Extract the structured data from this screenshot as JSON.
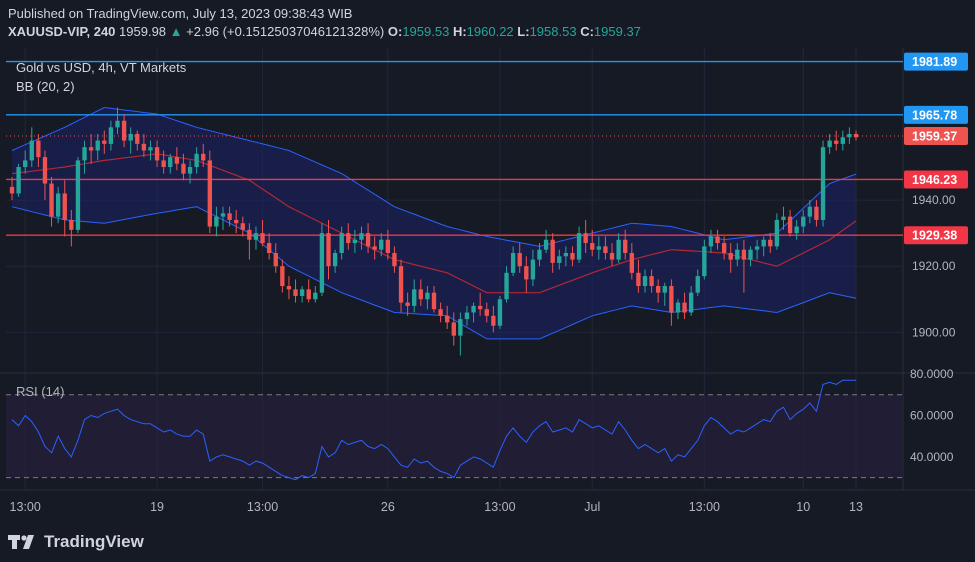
{
  "header": {
    "published": "Published on TradingView.com, July 13, 2023 09:38:43 WIB",
    "symbol": "XAUUSD-VIP, 240",
    "last": "1959.98",
    "arrow": "▲",
    "change": "+2.96 (+0.15125037046121328%)",
    "o_label": "O:",
    "o_value": "1959.53",
    "h_label": "H:",
    "h_value": "1960.22",
    "l_label": "L:",
    "l_value": "1958.53",
    "c_label": "C:",
    "c_value": "1959.37"
  },
  "legend": {
    "title": "Gold vs USD, 4h, VT Markets",
    "bb": "BB (20, 2)"
  },
  "rsi": {
    "label": "RSI (14)"
  },
  "branding": {
    "name": "TradingView"
  },
  "colors": {
    "background": "#161a25",
    "bull": "#26a69a",
    "bear": "#ef5350",
    "bb_fill": "#1c2266",
    "bb_band": "#2962ff",
    "bb_mid": "#b22833",
    "hline_red": "#f23645",
    "hline_blue": "#2196f3",
    "rsi_line": "#2962ff",
    "rsi_band": "#2a1f3f"
  },
  "chart_data": [
    {
      "type": "candlestick",
      "title": "Gold vs USD, 4h, VT Markets",
      "y_range": [
        1888,
        1986
      ],
      "y_ticks": [
        1900,
        1920,
        1940
      ],
      "x_ticks": [
        "13:00",
        "19",
        "13:00",
        "26",
        "13:00",
        "Jul",
        "13:00",
        "10",
        "13"
      ],
      "price_levels": [
        {
          "value": 1981.89,
          "label": "1981.89",
          "color": "#2196f3"
        },
        {
          "value": 1965.78,
          "label": "1965.78",
          "color": "#2196f3"
        },
        {
          "value": 1959.37,
          "label": "1959.37",
          "color": "#ef5350",
          "style": "dotted"
        },
        {
          "value": 1946.23,
          "label": "1946.23",
          "color": "#f23645"
        },
        {
          "value": 1929.38,
          "label": "1929.38",
          "color": "#f23645"
        }
      ],
      "ohlc": [
        [
          1944,
          1947,
          1940,
          1942
        ],
        [
          1942,
          1951,
          1941,
          1950
        ],
        [
          1950,
          1955,
          1948,
          1952
        ],
        [
          1952,
          1962,
          1950,
          1958
        ],
        [
          1958,
          1960,
          1950,
          1953
        ],
        [
          1953,
          1955,
          1940,
          1945
        ],
        [
          1945,
          1947,
          1932,
          1935
        ],
        [
          1935,
          1944,
          1933,
          1942
        ],
        [
          1942,
          1946,
          1929,
          1934
        ],
        [
          1934,
          1937,
          1926,
          1931
        ],
        [
          1931,
          1953,
          1930,
          1952
        ],
        [
          1952,
          1958,
          1948,
          1956
        ],
        [
          1956,
          1960,
          1951,
          1955
        ],
        [
          1955,
          1960,
          1952,
          1958
        ],
        [
          1958,
          1961,
          1954,
          1957
        ],
        [
          1957,
          1964,
          1955,
          1962
        ],
        [
          1962,
          1968,
          1960,
          1964
        ],
        [
          1964,
          1966,
          1956,
          1958
        ],
        [
          1958,
          1962,
          1954,
          1960
        ],
        [
          1960,
          1961,
          1955,
          1957
        ],
        [
          1957,
          1960,
          1953,
          1955
        ],
        [
          1955,
          1958,
          1952,
          1956
        ],
        [
          1956,
          1958,
          1950,
          1952
        ],
        [
          1952,
          1955,
          1948,
          1950
        ],
        [
          1950,
          1954,
          1948,
          1953
        ],
        [
          1953,
          1956,
          1949,
          1951
        ],
        [
          1951,
          1954,
          1946,
          1948
        ],
        [
          1948,
          1952,
          1945,
          1950
        ],
        [
          1950,
          1956,
          1948,
          1954
        ],
        [
          1954,
          1957,
          1950,
          1952
        ],
        [
          1952,
          1955,
          1930,
          1932
        ],
        [
          1932,
          1938,
          1929,
          1935
        ],
        [
          1935,
          1938,
          1931,
          1936
        ],
        [
          1936,
          1938,
          1932,
          1934
        ],
        [
          1934,
          1937,
          1930,
          1933
        ],
        [
          1933,
          1935,
          1929,
          1931
        ],
        [
          1931,
          1933,
          1922,
          1928
        ],
        [
          1928,
          1932,
          1925,
          1930
        ],
        [
          1930,
          1934,
          1926,
          1927
        ],
        [
          1927,
          1930,
          1922,
          1924
        ],
        [
          1924,
          1927,
          1918,
          1920
        ],
        [
          1920,
          1922,
          1912,
          1914
        ],
        [
          1914,
          1917,
          1910,
          1913
        ],
        [
          1913,
          1916,
          1909,
          1911
        ],
        [
          1911,
          1914,
          1909,
          1913
        ],
        [
          1913,
          1916,
          1909,
          1910
        ],
        [
          1910,
          1914,
          1909,
          1912
        ],
        [
          1912,
          1933,
          1911,
          1930
        ],
        [
          1930,
          1934,
          1916,
          1920
        ],
        [
          1920,
          1925,
          1918,
          1924
        ],
        [
          1924,
          1932,
          1922,
          1930
        ],
        [
          1930,
          1933,
          1925,
          1927
        ],
        [
          1927,
          1931,
          1924,
          1928
        ],
        [
          1928,
          1932,
          1925,
          1930
        ],
        [
          1930,
          1933,
          1924,
          1926
        ],
        [
          1926,
          1929,
          1922,
          1925
        ],
        [
          1925,
          1930,
          1923,
          1928
        ],
        [
          1928,
          1931,
          1922,
          1924
        ],
        [
          1924,
          1926,
          1918,
          1920
        ],
        [
          1920,
          1922,
          1906,
          1909
        ],
        [
          1909,
          1912,
          1905,
          1908
        ],
        [
          1908,
          1916,
          1906,
          1913
        ],
        [
          1913,
          1916,
          1908,
          1910
        ],
        [
          1910,
          1914,
          1907,
          1912
        ],
        [
          1912,
          1914,
          1906,
          1907
        ],
        [
          1907,
          1909,
          1903,
          1905
        ],
        [
          1905,
          1908,
          1901,
          1903
        ],
        [
          1903,
          1906,
          1896,
          1899
        ],
        [
          1899,
          1906,
          1893,
          1904
        ],
        [
          1904,
          1908,
          1902,
          1906
        ],
        [
          1906,
          1909,
          1903,
          1908
        ],
        [
          1908,
          1912,
          1905,
          1907
        ],
        [
          1907,
          1909,
          1903,
          1905
        ],
        [
          1905,
          1908,
          1900,
          1902
        ],
        [
          1902,
          1911,
          1901,
          1910
        ],
        [
          1910,
          1920,
          1909,
          1918
        ],
        [
          1918,
          1926,
          1917,
          1924
        ],
        [
          1924,
          1927,
          1918,
          1920
        ],
        [
          1920,
          1923,
          1912,
          1916
        ],
        [
          1916,
          1925,
          1914,
          1922
        ],
        [
          1922,
          1927,
          1920,
          1925
        ],
        [
          1925,
          1931,
          1924,
          1928
        ],
        [
          1928,
          1930,
          1918,
          1921
        ],
        [
          1921,
          1925,
          1919,
          1923
        ],
        [
          1923,
          1926,
          1920,
          1924
        ],
        [
          1924,
          1926,
          1920,
          1922
        ],
        [
          1922,
          1932,
          1921,
          1930
        ],
        [
          1930,
          1934,
          1924,
          1927
        ],
        [
          1927,
          1931,
          1923,
          1925
        ],
        [
          1925,
          1929,
          1922,
          1926
        ],
        [
          1926,
          1929,
          1922,
          1924
        ],
        [
          1924,
          1927,
          1920,
          1922
        ],
        [
          1922,
          1930,
          1921,
          1928
        ],
        [
          1928,
          1931,
          1922,
          1924
        ],
        [
          1924,
          1927,
          1916,
          1918
        ],
        [
          1918,
          1922,
          1912,
          1914
        ],
        [
          1914,
          1919,
          1912,
          1917
        ],
        [
          1917,
          1919,
          1912,
          1914
        ],
        [
          1914,
          1916,
          1909,
          1912
        ],
        [
          1912,
          1915,
          1908,
          1914
        ],
        [
          1914,
          1916,
          1902,
          1906
        ],
        [
          1906,
          1910,
          1904,
          1909
        ],
        [
          1909,
          1912,
          1904,
          1906
        ],
        [
          1906,
          1914,
          1905,
          1912
        ],
        [
          1912,
          1919,
          1911,
          1917
        ],
        [
          1917,
          1928,
          1916,
          1926
        ],
        [
          1926,
          1931,
          1924,
          1929
        ],
        [
          1929,
          1931,
          1925,
          1927
        ],
        [
          1927,
          1929,
          1922,
          1924
        ],
        [
          1924,
          1927,
          1918,
          1922
        ],
        [
          1922,
          1927,
          1920,
          1925
        ],
        [
          1925,
          1928,
          1912,
          1922
        ],
        [
          1922,
          1926,
          1920,
          1925
        ],
        [
          1925,
          1928,
          1922,
          1926
        ],
        [
          1926,
          1929,
          1923,
          1928
        ],
        [
          1928,
          1930,
          1924,
          1926
        ],
        [
          1926,
          1936,
          1925,
          1934
        ],
        [
          1934,
          1938,
          1931,
          1935
        ],
        [
          1935,
          1937,
          1929,
          1930
        ],
        [
          1930,
          1934,
          1928,
          1932
        ],
        [
          1932,
          1937,
          1930,
          1935
        ],
        [
          1935,
          1940,
          1933,
          1938
        ],
        [
          1938,
          1940,
          1932,
          1934
        ],
        [
          1934,
          1958,
          1932,
          1956
        ],
        [
          1956,
          1960,
          1954,
          1958
        ],
        [
          1958,
          1961,
          1955,
          1957
        ],
        [
          1957,
          1961,
          1955,
          1959
        ],
        [
          1959,
          1962,
          1957,
          1960
        ],
        [
          1960,
          1961,
          1958,
          1959
        ]
      ],
      "bollinger": {
        "period": 20,
        "stddev": 2,
        "upper_anchor": [
          [
            0,
            1955
          ],
          [
            8,
            1962
          ],
          [
            14,
            1968
          ],
          [
            22,
            1966
          ],
          [
            28,
            1962
          ],
          [
            36,
            1958
          ],
          [
            42,
            1955
          ],
          [
            50,
            1948
          ],
          [
            58,
            1938
          ],
          [
            66,
            1932
          ],
          [
            72,
            1929
          ],
          [
            80,
            1926
          ],
          [
            88,
            1930
          ],
          [
            94,
            1933
          ],
          [
            100,
            1932
          ],
          [
            108,
            1928
          ],
          [
            116,
            1930
          ],
          [
            124,
            1945
          ],
          [
            131,
            1950
          ]
        ],
        "middle_anchor": [
          [
            0,
            1948
          ],
          [
            8,
            1950
          ],
          [
            14,
            1952
          ],
          [
            22,
            1954
          ],
          [
            28,
            1952
          ],
          [
            36,
            1946
          ],
          [
            42,
            1938
          ],
          [
            50,
            1930
          ],
          [
            58,
            1922
          ],
          [
            66,
            1918
          ],
          [
            72,
            1912
          ],
          [
            80,
            1912
          ],
          [
            88,
            1918
          ],
          [
            94,
            1922
          ],
          [
            100,
            1925
          ],
          [
            108,
            1924
          ],
          [
            116,
            1920
          ],
          [
            124,
            1928
          ],
          [
            131,
            1938
          ]
        ],
        "lower_anchor": [
          [
            0,
            1938
          ],
          [
            8,
            1934
          ],
          [
            14,
            1933
          ],
          [
            22,
            1936
          ],
          [
            28,
            1938
          ],
          [
            36,
            1930
          ],
          [
            42,
            1920
          ],
          [
            50,
            1912
          ],
          [
            58,
            1906
          ],
          [
            66,
            1905
          ],
          [
            72,
            1898
          ],
          [
            80,
            1898
          ],
          [
            88,
            1905
          ],
          [
            94,
            1908
          ],
          [
            100,
            1906
          ],
          [
            108,
            1908
          ],
          [
            116,
            1906
          ],
          [
            124,
            1912
          ],
          [
            131,
            1909
          ]
        ]
      }
    },
    {
      "type": "line",
      "title": "RSI (14)",
      "y_range": [
        25,
        80
      ],
      "y_ticks": [
        40,
        60,
        80
      ],
      "y_tick_labels": [
        "40.0000",
        "60.0000",
        "80.0000"
      ],
      "bands": [
        30,
        70
      ],
      "values": [
        58,
        55,
        60,
        57,
        52,
        45,
        42,
        50,
        44,
        40,
        48,
        58,
        60,
        59,
        61,
        62,
        63,
        60,
        58,
        57,
        56,
        56,
        54,
        52,
        53,
        51,
        50,
        50,
        53,
        51,
        38,
        40,
        41,
        40,
        39,
        38,
        36,
        38,
        37,
        35,
        33,
        31,
        30,
        29,
        31,
        30,
        32,
        45,
        40,
        42,
        48,
        46,
        47,
        48,
        45,
        44,
        46,
        44,
        40,
        36,
        35,
        39,
        37,
        38,
        35,
        33,
        32,
        30,
        36,
        38,
        40,
        39,
        37,
        35,
        43,
        50,
        54,
        50,
        47,
        52,
        55,
        57,
        52,
        53,
        54,
        52,
        58,
        56,
        54,
        55,
        53,
        51,
        57,
        53,
        48,
        44,
        46,
        44,
        42,
        44,
        38,
        41,
        40,
        44,
        48,
        55,
        59,
        57,
        54,
        51,
        53,
        52,
        54,
        56,
        58,
        57,
        62,
        64,
        58,
        61,
        63,
        66,
        62,
        75,
        76,
        75,
        77,
        77,
        77
      ]
    }
  ]
}
